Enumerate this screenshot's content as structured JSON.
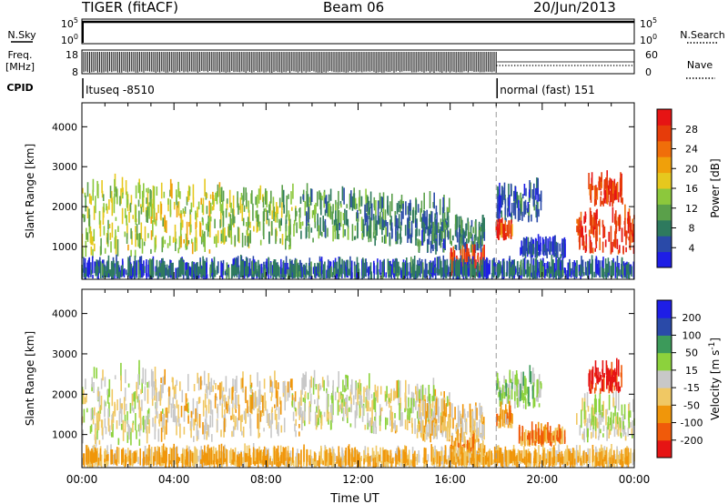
{
  "header": {
    "title": "TIGER (fitACF)",
    "beam": "Beam 06",
    "date": "20/Jun/2013"
  },
  "strips": {
    "nsky_label": "N.Sky",
    "nsky_ticks": [
      "10^5",
      "10^0"
    ],
    "nsearch_label": "N.Search",
    "nsearch_ticks": [
      "10^5",
      "10^0"
    ],
    "freq_label": "Freq.",
    "freq_unit": "[MHz]",
    "freq_ticks": [
      "18",
      "8"
    ],
    "nave_label": "Nave",
    "nave_ticks": [
      "60",
      "0"
    ],
    "cpid_label": "CPID",
    "cpid_segments": [
      {
        "label": "Ituseq -8510",
        "start": 0,
        "end": 18
      },
      {
        "label": "normal (fast) 151",
        "start": 18,
        "end": 24
      }
    ]
  },
  "colors": {
    "axis": "#000000",
    "divider": "#9a9a9a"
  },
  "chart_data": [
    {
      "type": "heatmap",
      "xlabel": "",
      "ylabel": "Slant Range [km]",
      "xlim": [
        0,
        24
      ],
      "ylim": [
        180,
        4600
      ],
      "yticks": [
        1000,
        2000,
        3000,
        4000
      ],
      "xticks": [
        "00:00",
        "04:00",
        "08:00",
        "12:00",
        "16:00",
        "20:00",
        "00:00"
      ],
      "colorbar": {
        "label": "Power [dB]",
        "ticks": [
          "4",
          "8",
          "12",
          "16",
          "20",
          "24",
          "28"
        ],
        "range": [
          0,
          30
        ],
        "colors": [
          "#1e1ee6",
          "#2a4aa8",
          "#2e7a5e",
          "#5aa04a",
          "#8cc83c",
          "#e6c81e",
          "#f0a00a",
          "#f06e0a",
          "#e63c0a",
          "#e61414"
        ]
      },
      "regions": [
        {
          "t0": 0.0,
          "t1": 3.0,
          "r0": 700,
          "r1": 2400,
          "value": 14
        },
        {
          "t0": 3.0,
          "t1": 6.0,
          "r0": 800,
          "r1": 2300,
          "value": 15
        },
        {
          "t0": 6.0,
          "t1": 9.5,
          "r0": 900,
          "r1": 2200,
          "value": 13
        },
        {
          "t0": 9.5,
          "t1": 12.5,
          "r0": 1100,
          "r1": 2200,
          "value": 9
        },
        {
          "t0": 12.5,
          "t1": 16.0,
          "r0": 1000,
          "r1": 2000,
          "value": 8
        },
        {
          "t0": 14.5,
          "t1": 17.5,
          "r0": 800,
          "r1": 1500,
          "value": 7
        },
        {
          "t0": 16.0,
          "t1": 17.5,
          "r0": 250,
          "r1": 700,
          "value": 26
        },
        {
          "t0": 18.0,
          "t1": 20.0,
          "r0": 1600,
          "r1": 2300,
          "value": 6
        },
        {
          "t0": 18.0,
          "t1": 18.7,
          "r0": 1150,
          "r1": 1400,
          "value": 24
        },
        {
          "t0": 19.0,
          "t1": 21.0,
          "r0": 700,
          "r1": 900,
          "value": 3
        },
        {
          "t0": 21.5,
          "t1": 24.0,
          "r0": 800,
          "r1": 1700,
          "value": 26
        },
        {
          "t0": 22.0,
          "t1": 23.5,
          "r0": 2000,
          "r1": 2500,
          "value": 27
        },
        {
          "t0": 0.0,
          "t1": 24.0,
          "r0": 180,
          "r1": 350,
          "value": 5
        }
      ]
    },
    {
      "type": "heatmap",
      "xlabel": "Time UT",
      "ylabel": "Slant Range [km]",
      "xlim": [
        0,
        24
      ],
      "ylim": [
        180,
        4600
      ],
      "yticks": [
        1000,
        2000,
        3000,
        4000
      ],
      "xticks": [
        "00:00",
        "04:00",
        "08:00",
        "12:00",
        "16:00",
        "20:00",
        "00:00"
      ],
      "colorbar": {
        "label": "Velocity [m s^-1]",
        "ticks": [
          "200",
          "100",
          "50",
          "15",
          "-15",
          "-50",
          "-100",
          "-200"
        ],
        "range": [
          -250,
          250
        ],
        "colors": [
          "#e61414",
          "#f05a0a",
          "#f0960a",
          "#f0c864",
          "#c8c8c8",
          "#8cd23c",
          "#3c9a5a",
          "#2a4aa8",
          "#1e1ee6"
        ]
      },
      "regions": [
        {
          "t0": 0.0,
          "t1": 3.0,
          "r0": 700,
          "r1": 2400,
          "value": 0
        },
        {
          "t0": 3.0,
          "t1": 6.0,
          "r0": 800,
          "r1": 2300,
          "value": -30
        },
        {
          "t0": 6.0,
          "t1": 9.5,
          "r0": 900,
          "r1": 2200,
          "value": -40
        },
        {
          "t0": 9.5,
          "t1": 12.5,
          "r0": 1100,
          "r1": 2200,
          "value": 5
        },
        {
          "t0": 12.5,
          "t1": 16.0,
          "r0": 1000,
          "r1": 2000,
          "value": -20
        },
        {
          "t0": 14.5,
          "t1": 17.5,
          "r0": 800,
          "r1": 1500,
          "value": -60
        },
        {
          "t0": 16.0,
          "t1": 17.5,
          "r0": 250,
          "r1": 700,
          "value": -80
        },
        {
          "t0": 18.0,
          "t1": 20.0,
          "r0": 1600,
          "r1": 2300,
          "value": 40
        },
        {
          "t0": 18.0,
          "t1": 18.7,
          "r0": 1150,
          "r1": 1400,
          "value": -90
        },
        {
          "t0": 19.0,
          "t1": 21.0,
          "r0": 700,
          "r1": 900,
          "value": -120
        },
        {
          "t0": 21.5,
          "t1": 24.0,
          "r0": 800,
          "r1": 1700,
          "value": 0
        },
        {
          "t0": 22.0,
          "t1": 23.5,
          "r0": 2000,
          "r1": 2500,
          "value": -220
        },
        {
          "t0": 0.0,
          "t1": 24.0,
          "r0": 180,
          "r1": 350,
          "value": -60
        }
      ]
    }
  ]
}
